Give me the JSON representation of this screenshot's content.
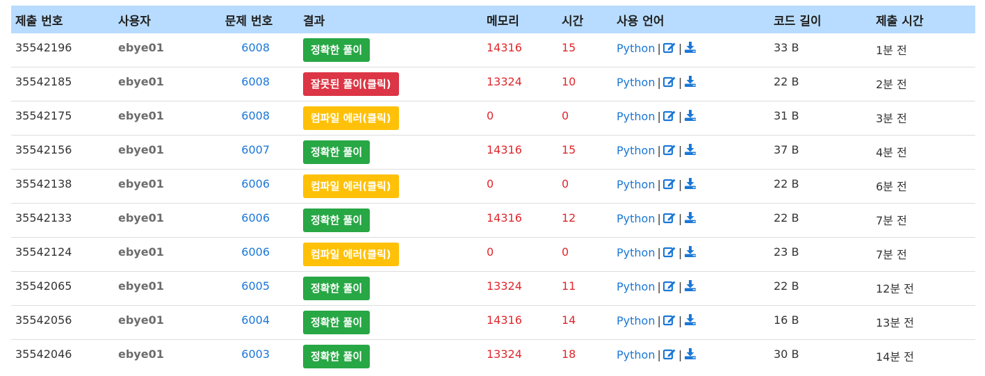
{
  "headers": [
    "제출 번호",
    "사용자",
    "문제 번호",
    "결과",
    "메모리",
    "시간",
    "사용 언어",
    "코드 길이",
    "제출 시간"
  ],
  "separator": "|",
  "colors": {
    "header_bg": "#b8dcff",
    "link": "#1a77d6",
    "numeric_red": "#e0262b",
    "accepted": "#28a745",
    "wrong": "#dc3545",
    "compile_error": "#ffc107"
  },
  "icons": {
    "edit": "edit-icon",
    "download": "download-icon"
  },
  "rows": [
    {
      "id": "35542196",
      "user": "ebye01",
      "problem": "6008",
      "result": "정확한 풀이",
      "result_type": "ok",
      "memory": "14316",
      "time": "15",
      "language": "Python",
      "length": "33 B",
      "submitted": "1분 전"
    },
    {
      "id": "35542185",
      "user": "ebye01",
      "problem": "6008",
      "result": "잘못된 풀이(클릭)",
      "result_type": "wrong",
      "memory": "13324",
      "time": "10",
      "language": "Python",
      "length": "22 B",
      "submitted": "2분 전"
    },
    {
      "id": "35542175",
      "user": "ebye01",
      "problem": "6008",
      "result": "컴파일 에러(클릭)",
      "result_type": "compile",
      "memory": "0",
      "time": "0",
      "language": "Python",
      "length": "31 B",
      "submitted": "3분 전"
    },
    {
      "id": "35542156",
      "user": "ebye01",
      "problem": "6007",
      "result": "정확한 풀이",
      "result_type": "ok",
      "memory": "14316",
      "time": "15",
      "language": "Python",
      "length": "37 B",
      "submitted": "4분 전"
    },
    {
      "id": "35542138",
      "user": "ebye01",
      "problem": "6006",
      "result": "컴파일 에러(클릭)",
      "result_type": "compile",
      "memory": "0",
      "time": "0",
      "language": "Python",
      "length": "22 B",
      "submitted": "6분 전"
    },
    {
      "id": "35542133",
      "user": "ebye01",
      "problem": "6006",
      "result": "정확한 풀이",
      "result_type": "ok",
      "memory": "14316",
      "time": "12",
      "language": "Python",
      "length": "22 B",
      "submitted": "7분 전"
    },
    {
      "id": "35542124",
      "user": "ebye01",
      "problem": "6006",
      "result": "컴파일 에러(클릭)",
      "result_type": "compile",
      "memory": "0",
      "time": "0",
      "language": "Python",
      "length": "23 B",
      "submitted": "7분 전"
    },
    {
      "id": "35542065",
      "user": "ebye01",
      "problem": "6005",
      "result": "정확한 풀이",
      "result_type": "ok",
      "memory": "13324",
      "time": "11",
      "language": "Python",
      "length": "22 B",
      "submitted": "12분 전"
    },
    {
      "id": "35542056",
      "user": "ebye01",
      "problem": "6004",
      "result": "정확한 풀이",
      "result_type": "ok",
      "memory": "14316",
      "time": "14",
      "language": "Python",
      "length": "16 B",
      "submitted": "13분 전"
    },
    {
      "id": "35542046",
      "user": "ebye01",
      "problem": "6003",
      "result": "정확한 풀이",
      "result_type": "ok",
      "memory": "13324",
      "time": "18",
      "language": "Python",
      "length": "30 B",
      "submitted": "14분 전"
    }
  ]
}
